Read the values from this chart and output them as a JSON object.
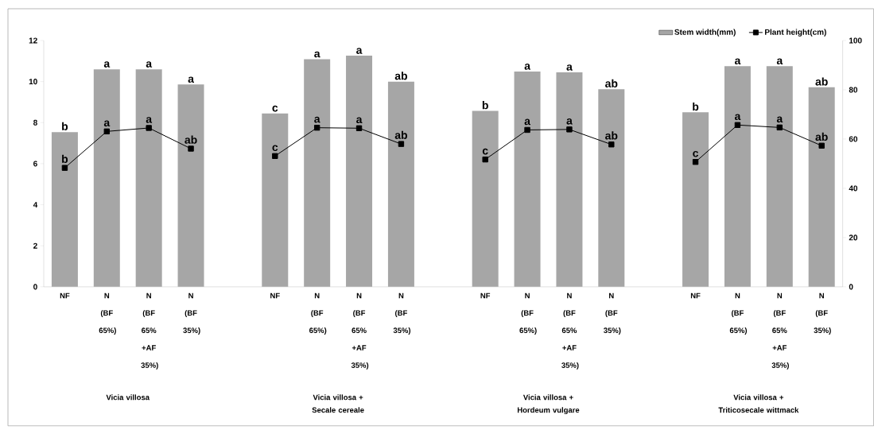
{
  "chart_data": {
    "type": "bar",
    "categories": [
      "NF",
      "N (BF 65%)",
      "N (BF 65% +AF 35%)",
      "N (BF 35%)",
      null,
      "NF",
      "N (BF 65%)",
      "N (BF 65% +AF 35%)",
      "N (BF 35%)",
      null,
      "NF",
      "N (BF 65%)",
      "N (BF 65% +AF 35%)",
      "N (BF 35%)",
      null,
      "NF",
      "N (BF 65%)",
      "N (BF 65% +AF 35%)",
      "N (BF 35%)"
    ],
    "series": [
      {
        "name": "Stem width(mm)",
        "color": "#a6a6a6",
        "values": [
          7.54,
          10.6,
          10.6,
          9.86,
          null,
          8.45,
          11.09,
          11.26,
          10.0,
          null,
          8.57,
          10.49,
          10.45,
          9.63,
          null,
          8.5,
          10.75,
          10.75,
          9.72
        ],
        "value_labels": [
          "b",
          "a",
          "a",
          "a",
          null,
          "c",
          "a",
          "a",
          "ab",
          null,
          "b",
          "a",
          "a",
          "ab",
          null,
          "b",
          "a",
          "a",
          "ab"
        ]
      },
      {
        "name": "Plant height(cm)",
        "type": "line",
        "axis": "y2",
        "color": "#000000",
        "marker": "square",
        "values": [
          48.3,
          63.1,
          64.5,
          56.1,
          null,
          53.1,
          64.6,
          64.4,
          58.0,
          null,
          51.7,
          63.7,
          63.9,
          57.8,
          null,
          50.7,
          65.7,
          64.7,
          57.3
        ],
        "value_labels": [
          "b",
          "a",
          "a",
          "ab",
          null,
          "c",
          "a",
          "a",
          "ab",
          null,
          "c",
          "a",
          "a",
          "ab",
          null,
          "c",
          "a",
          "a",
          "ab"
        ]
      }
    ],
    "ylim": [
      0,
      12
    ],
    "yticks": [
      0,
      2,
      4,
      6,
      8,
      10,
      12
    ],
    "y2lim": [
      0,
      100
    ],
    "y2ticks": [
      0,
      20,
      40,
      60,
      80,
      100
    ],
    "legend": "top right",
    "annotations": [
      "Vicia villosa",
      "Vicia villosa + Secale cereale",
      "Vicia villosa + Hordeum vulgare",
      "Vicia villosa + Triticosecale wittmack"
    ]
  }
}
